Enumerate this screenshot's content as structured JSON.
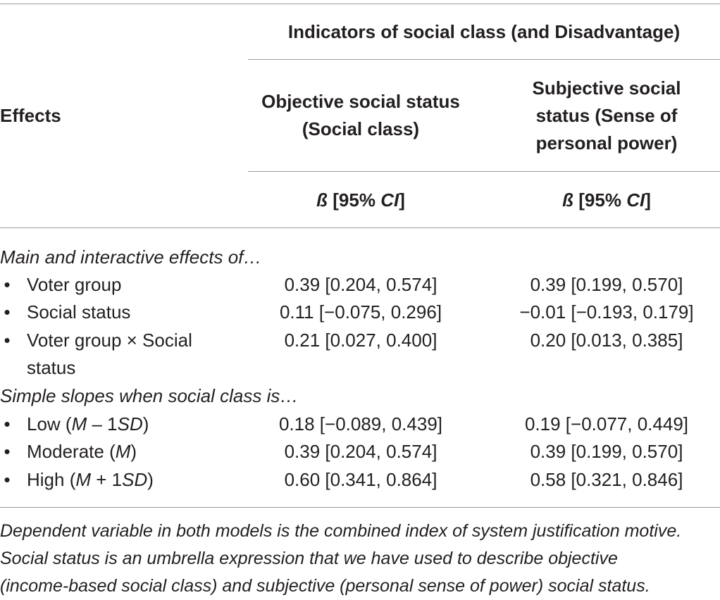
{
  "header": {
    "group_title": "Indicators of social class (and Disadvantage)",
    "effects_label": "Effects",
    "col1_title_line1": "Objective social status",
    "col1_title_line2": "(Social class)",
    "col2_title_line1": "Subjective social",
    "col2_title_line2": "status (Sense of",
    "col2_title_line3": "personal power)",
    "stat_label_beta": "ß",
    "stat_label_mid": " [95% ",
    "stat_label_ci": "CI",
    "stat_label_end": "]"
  },
  "section1": {
    "title": "Main and interactive effects of…",
    "rows": [
      {
        "bullet": "•",
        "label": "Voter group",
        "col1": "0.39 [0.204, 0.574]",
        "col2": "0.39 [0.199, 0.570]"
      },
      {
        "bullet": "•",
        "label": "Social status",
        "col1": "0.11 [−0.075, 0.296]",
        "col2": "−0.01 [−0.193, 0.179]"
      },
      {
        "bullet": "•",
        "label": "Voter group × Social",
        "label_cont": "status",
        "col1": "0.21 [0.027, 0.400]",
        "col2": "0.20 [0.013, 0.385]"
      }
    ]
  },
  "section2": {
    "title": "Simple slopes when social class is…",
    "rows": [
      {
        "bullet": "•",
        "label_pre": "Low (",
        "label_m": "M",
        "label_mid": " – 1",
        "label_sd": "SD",
        "label_post": ")",
        "col1": "0.18 [−0.089, 0.439]",
        "col2": "0.19 [−0.077, 0.449]"
      },
      {
        "bullet": "•",
        "label_pre": "Moderate (",
        "label_m": "M",
        "label_post": ")",
        "col1": "0.39 [0.204, 0.574]",
        "col2": "0.39 [0.199, 0.570]"
      },
      {
        "bullet": "•",
        "label_pre": "High (",
        "label_m": "M",
        "label_mid": " + 1",
        "label_sd": "SD",
        "label_post": ")",
        "col1": "0.60 [0.341, 0.864]",
        "col2": "0.58 [0.321, 0.846]"
      }
    ]
  },
  "footnote": {
    "line1": "Dependent variable in both models is the combined index of system justification motive.",
    "line2": "Social status is an umbrella expression that we have used to describe objective",
    "line3": "(income-based social class) and subjective (personal sense of power) social status."
  }
}
